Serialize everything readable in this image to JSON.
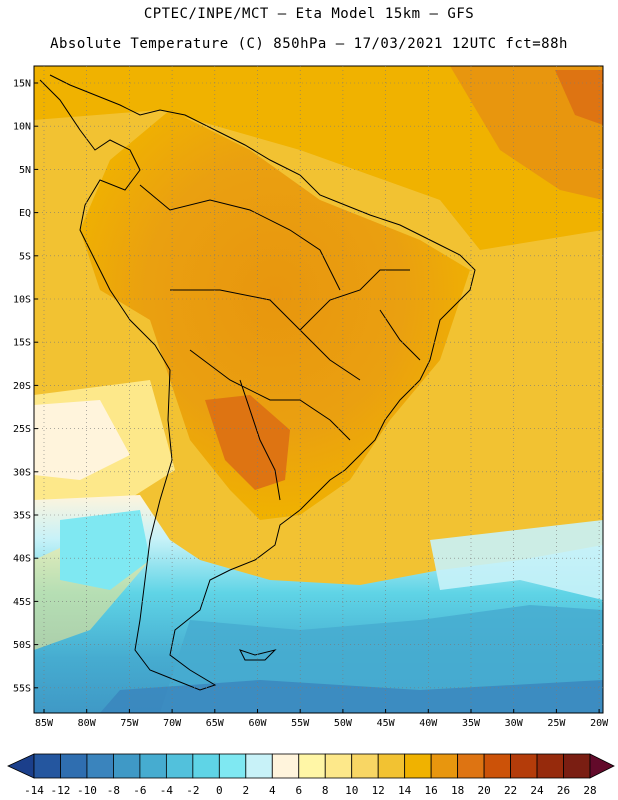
{
  "header": {
    "line1": "CPTEC/INPE/MCT —  Eta Model 15km — GFS",
    "line2": "Absolute Temperature (C) 850hPa — 17/03/2021 12UTC fct=88h"
  },
  "map": {
    "latitudes": [
      "15N",
      "10N",
      "5N",
      "EQ",
      "5S",
      "10S",
      "15S",
      "20S",
      "25S",
      "30S",
      "35S",
      "40S",
      "45S",
      "50S",
      "55S"
    ],
    "longitudes": [
      "85W",
      "80W",
      "75W",
      "70W",
      "65W",
      "60W",
      "55W",
      "50W",
      "45W",
      "40W",
      "35W",
      "30W",
      "25W",
      "20W"
    ]
  },
  "colorbar": {
    "labels": [
      "-14",
      "-12",
      "-10",
      "-8",
      "-6",
      "-4",
      "-2",
      "0",
      "2",
      "4",
      "6",
      "8",
      "10",
      "12",
      "14",
      "16",
      "18",
      "20",
      "22",
      "24",
      "26",
      "28"
    ],
    "colors": [
      "#1b3f8b",
      "#24569f",
      "#2f6eb0",
      "#3a84bd",
      "#3f99c6",
      "#46acd0",
      "#52c1dc",
      "#5fd4e6",
      "#7fe8f2",
      "#c8f2f8",
      "#fff4dc",
      "#fff6a6",
      "#fde88a",
      "#f8d664",
      "#f2c232",
      "#f0b200",
      "#e8960e",
      "#de7412",
      "#cc5208",
      "#b43c0a",
      "#962a0c",
      "#7a1e12",
      "#620a2a"
    ]
  }
}
